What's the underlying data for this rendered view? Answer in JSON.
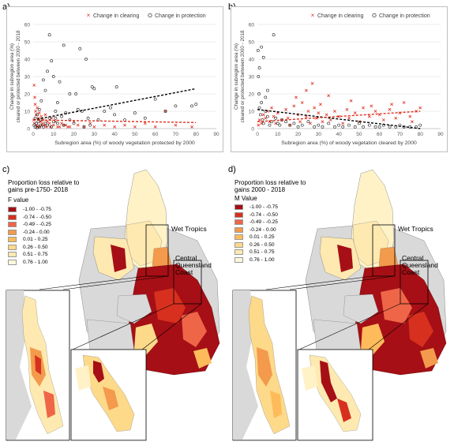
{
  "panels": {
    "a": {
      "letter": "a)"
    },
    "b": {
      "letter": "b)"
    },
    "c": {
      "letter": "c)"
    },
    "d": {
      "letter": "d)"
    }
  },
  "chart_data": [
    {
      "type": "scatter",
      "panel": "a",
      "xlabel": "Subregion area (%) of woody vegetation protected by 2000",
      "ylabel": "Change in subregion area (%)\ncleared or protected between 2000 - 2018",
      "xlim": [
        0,
        90
      ],
      "ylim": [
        0,
        60
      ],
      "xticks": [
        0,
        10,
        20,
        30,
        40,
        50,
        60,
        70,
        80,
        90
      ],
      "yticks": [
        0,
        10,
        20,
        30,
        40,
        50,
        60
      ],
      "grid": true,
      "legend_position": "top",
      "series": [
        {
          "name": "Change in clearing",
          "marker": "x",
          "color": "#e03020",
          "points": [
            [
              0.5,
              25
            ],
            [
              0.8,
              18
            ],
            [
              1,
              14
            ],
            [
              1.2,
              10
            ],
            [
              1.5,
              8
            ],
            [
              2,
              12
            ],
            [
              2.5,
              6
            ],
            [
              3,
              9
            ],
            [
              3.5,
              4
            ],
            [
              4,
              7
            ],
            [
              4.5,
              3
            ],
            [
              5,
              5
            ],
            [
              5.5,
              2
            ],
            [
              6,
              8
            ],
            [
              7,
              4
            ],
            [
              8,
              3
            ],
            [
              9,
              6
            ],
            [
              10,
              2
            ],
            [
              11,
              4
            ],
            [
              12,
              1
            ],
            [
              14,
              3
            ],
            [
              16,
              2
            ],
            [
              18,
              1
            ],
            [
              20,
              4
            ],
            [
              22,
              2
            ],
            [
              25,
              1
            ],
            [
              28,
              3
            ],
            [
              30,
              1
            ],
            [
              35,
              2
            ],
            [
              40,
              1
            ],
            [
              45,
              2
            ],
            [
              50,
              1
            ],
            [
              55,
              3
            ],
            [
              60,
              1
            ],
            [
              65,
              10
            ],
            [
              70,
              2
            ],
            [
              78,
              1
            ],
            [
              0.3,
              5
            ],
            [
              0.6,
              3
            ],
            [
              1.8,
              2
            ],
            [
              2.2,
              1
            ],
            [
              3.2,
              1
            ],
            [
              4.2,
              2
            ],
            [
              6.5,
              1
            ],
            [
              8.5,
              1
            ],
            [
              13,
              1
            ],
            [
              15,
              2
            ],
            [
              17,
              1
            ]
          ]
        },
        {
          "name": "Change in protection",
          "marker": "o",
          "color": "#1a1a1a",
          "points": [
            [
              0.5,
              2
            ],
            [
              1,
              1
            ],
            [
              1.5,
              3
            ],
            [
              2,
              0.5
            ],
            [
              2.5,
              4
            ],
            [
              3,
              1
            ],
            [
              3.5,
              2
            ],
            [
              4,
              5
            ],
            [
              5,
              1
            ],
            [
              6,
              3
            ],
            [
              7,
              2
            ],
            [
              8,
              6
            ],
            [
              9,
              1
            ],
            [
              10,
              4
            ],
            [
              11,
              10
            ],
            [
              12,
              3
            ],
            [
              13,
              27
            ],
            [
              14,
              7
            ],
            [
              15,
              2
            ],
            [
              16,
              9
            ],
            [
              18,
              5
            ],
            [
              20,
              3
            ],
            [
              21,
              20
            ],
            [
              22,
              11
            ],
            [
              23,
              46
            ],
            [
              24,
              10
            ],
            [
              25,
              1
            ],
            [
              26,
              40
            ],
            [
              27,
              6
            ],
            [
              28,
              2
            ],
            [
              29,
              24
            ],
            [
              30,
              23
            ],
            [
              32,
              5
            ],
            [
              35,
              10
            ],
            [
              38,
              12
            ],
            [
              40,
              8
            ],
            [
              41,
              24
            ],
            [
              45,
              5
            ],
            [
              50,
              9
            ],
            [
              55,
              6
            ],
            [
              60,
              17
            ],
            [
              65,
              10
            ],
            [
              70,
              13
            ],
            [
              78,
              13
            ],
            [
              80,
              14
            ],
            [
              7,
              33
            ],
            [
              8,
              54
            ],
            [
              9,
              39
            ],
            [
              10,
              30
            ],
            [
              5,
              28
            ],
            [
              6,
              22
            ],
            [
              4,
              16
            ],
            [
              3,
              11
            ],
            [
              2,
              8
            ],
            [
              1,
              6
            ],
            [
              15,
              48
            ],
            [
              18,
              20
            ],
            [
              12,
              15
            ],
            [
              11,
              6
            ]
          ]
        }
      ],
      "trendlines": [
        {
          "series": "Change in protection",
          "x": [
            0,
            80
          ],
          "y": [
            5,
            23
          ],
          "color": "#000000"
        },
        {
          "series": "Change in clearing",
          "x": [
            0,
            80
          ],
          "y": [
            5,
            3.5
          ],
          "color": "#e03020"
        }
      ]
    },
    {
      "type": "scatter",
      "panel": "b",
      "xlabel": "Subregion area (%) of woody vegetation cleared by 2000",
      "ylabel": "Change in subregion area (%)\ncleared or protected between 2000 - 2018",
      "xlim": [
        0,
        90
      ],
      "ylim": [
        0,
        60
      ],
      "xticks": [
        0,
        10,
        20,
        30,
        40,
        50,
        60,
        70,
        80,
        90
      ],
      "yticks": [
        0,
        10,
        20,
        30,
        40,
        50,
        60
      ],
      "grid": true,
      "legend_position": "top",
      "series": [
        {
          "name": "Change in clearing",
          "marker": "x",
          "color": "#e03020",
          "points": [
            [
              0.5,
              2
            ],
            [
              1,
              5
            ],
            [
              2,
              3
            ],
            [
              3,
              8
            ],
            [
              4,
              6
            ],
            [
              5,
              10
            ],
            [
              6,
              4
            ],
            [
              7,
              12
            ],
            [
              8,
              7
            ],
            [
              9,
              3
            ],
            [
              10,
              9
            ],
            [
              12,
              5
            ],
            [
              14,
              11
            ],
            [
              15,
              6
            ],
            [
              16,
              2
            ],
            [
              18,
              13
            ],
            [
              20,
              8
            ],
            [
              21,
              4
            ],
            [
              22,
              15
            ],
            [
              24,
              7
            ],
            [
              25,
              10
            ],
            [
              26,
              3
            ],
            [
              27,
              26
            ],
            [
              28,
              12
            ],
            [
              29,
              6
            ],
            [
              30,
              9
            ],
            [
              31,
              14
            ],
            [
              32,
              4
            ],
            [
              34,
              8
            ],
            [
              35,
              19
            ],
            [
              36,
              5
            ],
            [
              38,
              10
            ],
            [
              40,
              7
            ],
            [
              42,
              3
            ],
            [
              44,
              11
            ],
            [
              45,
              6
            ],
            [
              48,
              9
            ],
            [
              50,
              4
            ],
            [
              52,
              12
            ],
            [
              55,
              7
            ],
            [
              58,
              10
            ],
            [
              60,
              8
            ],
            [
              62,
              5
            ],
            [
              65,
              11
            ],
            [
              68,
              6
            ],
            [
              70,
              9
            ],
            [
              72,
              15
            ],
            [
              75,
              7
            ],
            [
              78,
              10
            ],
            [
              80,
              12
            ],
            [
              76,
              4
            ],
            [
              66,
              14
            ],
            [
              56,
              13
            ],
            [
              46,
              16
            ],
            [
              24,
              22
            ],
            [
              19,
              18
            ]
          ]
        },
        {
          "name": "Change in protection",
          "marker": "o",
          "color": "#1a1a1a",
          "points": [
            [
              0.3,
              45
            ],
            [
              0.5,
              30
            ],
            [
              0.8,
              20
            ],
            [
              1,
              12
            ],
            [
              1.5,
              8
            ],
            [
              2,
              15
            ],
            [
              2.5,
              5
            ],
            [
              3,
              3
            ],
            [
              4,
              10
            ],
            [
              5,
              7
            ],
            [
              6,
              2
            ],
            [
              7,
              4
            ],
            [
              8,
              54
            ],
            [
              9,
              6
            ],
            [
              10,
              3
            ],
            [
              11,
              2
            ],
            [
              12,
              5
            ],
            [
              14,
              4
            ],
            [
              16,
              2
            ],
            [
              18,
              3
            ],
            [
              20,
              1
            ],
            [
              22,
              2
            ],
            [
              25,
              4
            ],
            [
              28,
              1
            ],
            [
              30,
              2
            ],
            [
              32,
              1
            ],
            [
              35,
              3
            ],
            [
              38,
              1
            ],
            [
              40,
              2
            ],
            [
              42,
              1
            ],
            [
              45,
              2
            ],
            [
              48,
              1
            ],
            [
              50,
              3
            ],
            [
              52,
              1
            ],
            [
              55,
              2
            ],
            [
              58,
              1
            ],
            [
              60,
              1
            ],
            [
              62,
              2
            ],
            [
              65,
              1
            ],
            [
              68,
              1
            ],
            [
              70,
              2
            ],
            [
              72,
              1
            ],
            [
              75,
              1
            ],
            [
              78,
              1
            ],
            [
              80,
              2
            ],
            [
              3,
              41
            ],
            [
              2,
              47
            ],
            [
              5,
              22
            ],
            [
              1,
              35
            ],
            [
              4,
              18
            ]
          ]
        }
      ],
      "trendlines": [
        {
          "series": "Change in protection",
          "x": [
            0,
            80
          ],
          "y": [
            11,
            0
          ],
          "color": "#000000"
        },
        {
          "series": "Change in clearing",
          "x": [
            0,
            80
          ],
          "y": [
            4,
            10
          ],
          "color": "#e03020"
        }
      ]
    }
  ],
  "maps": [
    {
      "panel": "c",
      "legend_title": "Proportion loss relative to\ngains pre-1750- 2018",
      "value_label": "F value",
      "classes": [
        {
          "label": "-1.00 - -0.75",
          "color": "#a50f15"
        },
        {
          "label": "-0.74 - -0.50",
          "color": "#d7301f"
        },
        {
          "label": "-0.49 - -0.25",
          "color": "#ef6548"
        },
        {
          "label": "-0.24 - 0.00",
          "color": "#f39a4c"
        },
        {
          "label": "0.01 - 0.25",
          "color": "#fdbb5b"
        },
        {
          "label": "0.26 - 0.50",
          "color": "#fdd98a"
        },
        {
          "label": "0.51 - 0.75",
          "color": "#fee9b0"
        },
        {
          "label": "0.76 - 1.00",
          "color": "#fff7dc"
        }
      ],
      "region_labels": [
        "Wet Tropics",
        "Central Queensland\nCoast"
      ]
    },
    {
      "panel": "d",
      "legend_title": "Proportion loss relative to\ngains 2000 - 2018",
      "value_label": "M Value",
      "classes": [
        {
          "label": "-1.00 - -0.75",
          "color": "#a50f15"
        },
        {
          "label": "-0.74 - -0.50",
          "color": "#d7301f"
        },
        {
          "label": "-0.49 - -0.25",
          "color": "#ef6548"
        },
        {
          "label": "-0.24 - 0.00",
          "color": "#f39a4c"
        },
        {
          "label": "0.01 - 0.25",
          "color": "#fdbb5b"
        },
        {
          "label": "0.26 - 0.50",
          "color": "#fdd98a"
        },
        {
          "label": "0.51 - 0.75",
          "color": "#fee9b0"
        },
        {
          "label": "0.76 - 1.00",
          "color": "#fff7dc"
        }
      ],
      "region_labels": [
        "Wet Tropics",
        "Central Queensland\nCoast"
      ]
    }
  ]
}
